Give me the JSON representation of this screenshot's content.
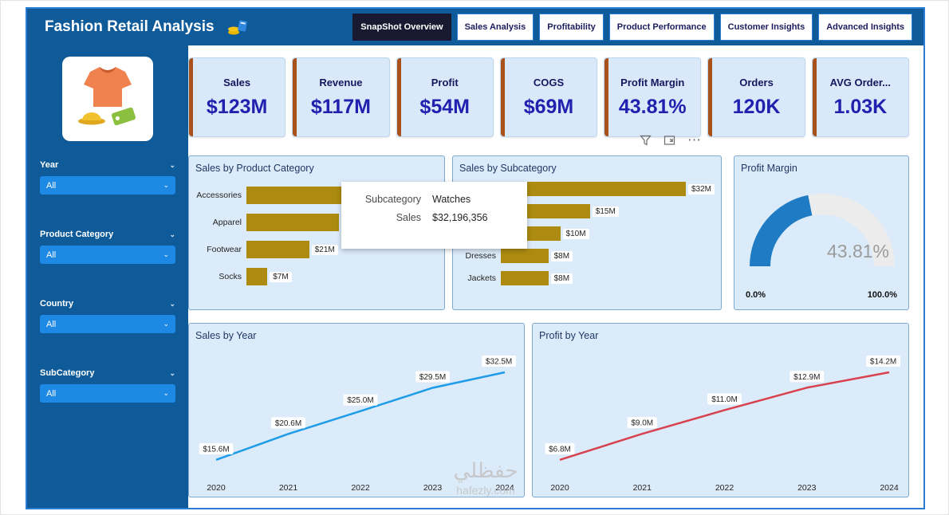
{
  "header": {
    "title": "Fashion Retail Analysis",
    "tabs": [
      {
        "label": "SnapShot Overview",
        "active": true
      },
      {
        "label": "Sales Analysis",
        "active": false
      },
      {
        "label": "Profitability",
        "active": false
      },
      {
        "label": "Product Performance",
        "active": false
      },
      {
        "label": "Customer Insights",
        "active": false
      },
      {
        "label": "Advanced Insights",
        "active": false
      }
    ]
  },
  "sidebar": {
    "filters": [
      {
        "label": "Year",
        "value": "All"
      },
      {
        "label": "Product Category",
        "value": "All"
      },
      {
        "label": "Country",
        "value": "All"
      },
      {
        "label": "SubCategory",
        "value": "All"
      }
    ]
  },
  "kpis": [
    {
      "label": "Sales",
      "value": "$123M"
    },
    {
      "label": "Revenue",
      "value": "$117M"
    },
    {
      "label": "Profit",
      "value": "$54M"
    },
    {
      "label": "COGS",
      "value": "$69M"
    },
    {
      "label": "Profit Margin",
      "value": "43.81%"
    },
    {
      "label": "Orders",
      "value": "120K"
    },
    {
      "label": "AVG Order...",
      "value": "1.03K"
    }
  ],
  "tooltip": {
    "rows": [
      {
        "label": "Subcategory",
        "value": "Watches"
      },
      {
        "label": "Sales",
        "value": "$32,196,356"
      }
    ]
  },
  "watermark": {
    "line1": "حفظلي",
    "line2": "hafezly.com"
  },
  "chart_data": [
    {
      "type": "bar",
      "orientation": "horizontal",
      "title": "Sales by Product Category",
      "categories": [
        "Accessories",
        "Apparel",
        "Footwear",
        "Socks"
      ],
      "values": [
        64,
        31,
        21,
        7
      ],
      "value_labels": [
        "",
        "",
        "$21M",
        "$7M"
      ],
      "bar_color": "#AD8B10"
    },
    {
      "type": "bar",
      "orientation": "horizontal",
      "title": "Sales by Subcategory",
      "categories": [
        "Watches",
        "",
        "",
        "Dresses",
        "Jackets"
      ],
      "values": [
        32,
        15,
        10,
        8,
        8
      ],
      "value_labels": [
        "$32M",
        "$15M",
        "$10M",
        "$8M",
        "$8M"
      ],
      "bar_color": "#AD8B10"
    },
    {
      "type": "gauge",
      "title": "Profit Margin",
      "value": 43.81,
      "value_label": "43.81%",
      "min": 0,
      "max": 100,
      "min_label": "0.0%",
      "max_label": "100.0%",
      "color": "#1E7BC4"
    },
    {
      "type": "line",
      "title": "Sales by Year",
      "x": [
        "2020",
        "2021",
        "2022",
        "2023",
        "2024"
      ],
      "values": [
        15.6,
        20.6,
        25.0,
        29.5,
        32.5
      ],
      "point_labels": [
        "$15.6M",
        "$20.6M",
        "$25.0M",
        "$29.5M",
        "$32.5M"
      ],
      "color": "#1F9CE8"
    },
    {
      "type": "line",
      "title": "Profit by Year",
      "x": [
        "2020",
        "2021",
        "2022",
        "2023",
        "2024"
      ],
      "values": [
        6.8,
        9.0,
        11.0,
        12.9,
        14.2
      ],
      "point_labels": [
        "$6.8M",
        "$9.0M",
        "$11.0M",
        "$12.9M",
        "$14.2M"
      ],
      "color": "#D8424F"
    }
  ]
}
